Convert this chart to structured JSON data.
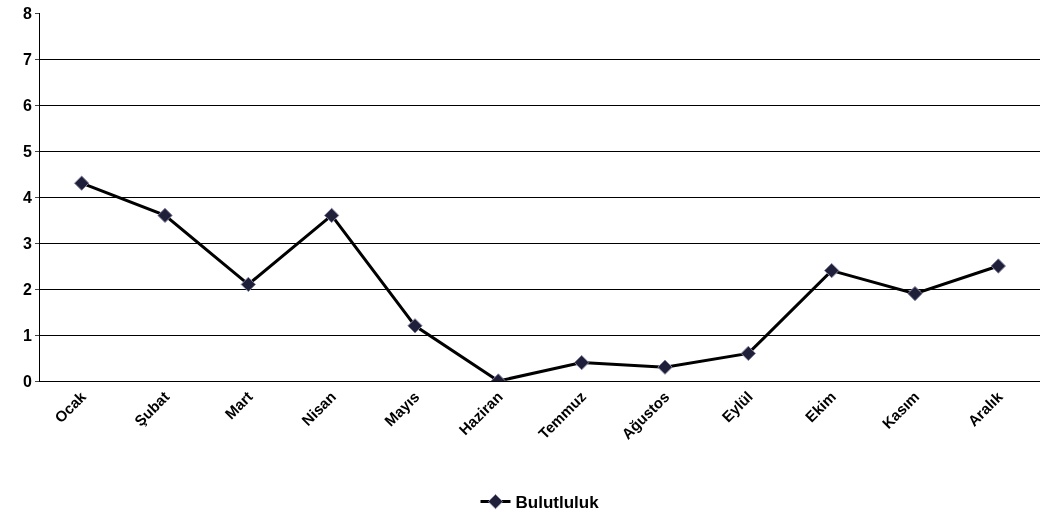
{
  "chart_data": {
    "type": "line",
    "categories": [
      "Ocak",
      "Şubat",
      "Mart",
      "Nisan",
      "Mayıs",
      "Haziran",
      "Temmuz",
      "Ağustos",
      "Eylül",
      "Ekim",
      "Kasım",
      "Aralık"
    ],
    "series": [
      {
        "name": "Bulutluluk",
        "color": "#000000",
        "values": [
          4.3,
          3.6,
          2.1,
          3.6,
          1.2,
          0,
          0.4,
          0.3,
          0.6,
          2.4,
          1.9,
          2.5
        ]
      }
    ],
    "ylim": [
      0,
      8
    ],
    "yticks": [
      0,
      1,
      2,
      3,
      4,
      5,
      6,
      7,
      8
    ],
    "grid": "y",
    "legend": "bottom",
    "marker": "diamond",
    "line_style": "solid"
  }
}
